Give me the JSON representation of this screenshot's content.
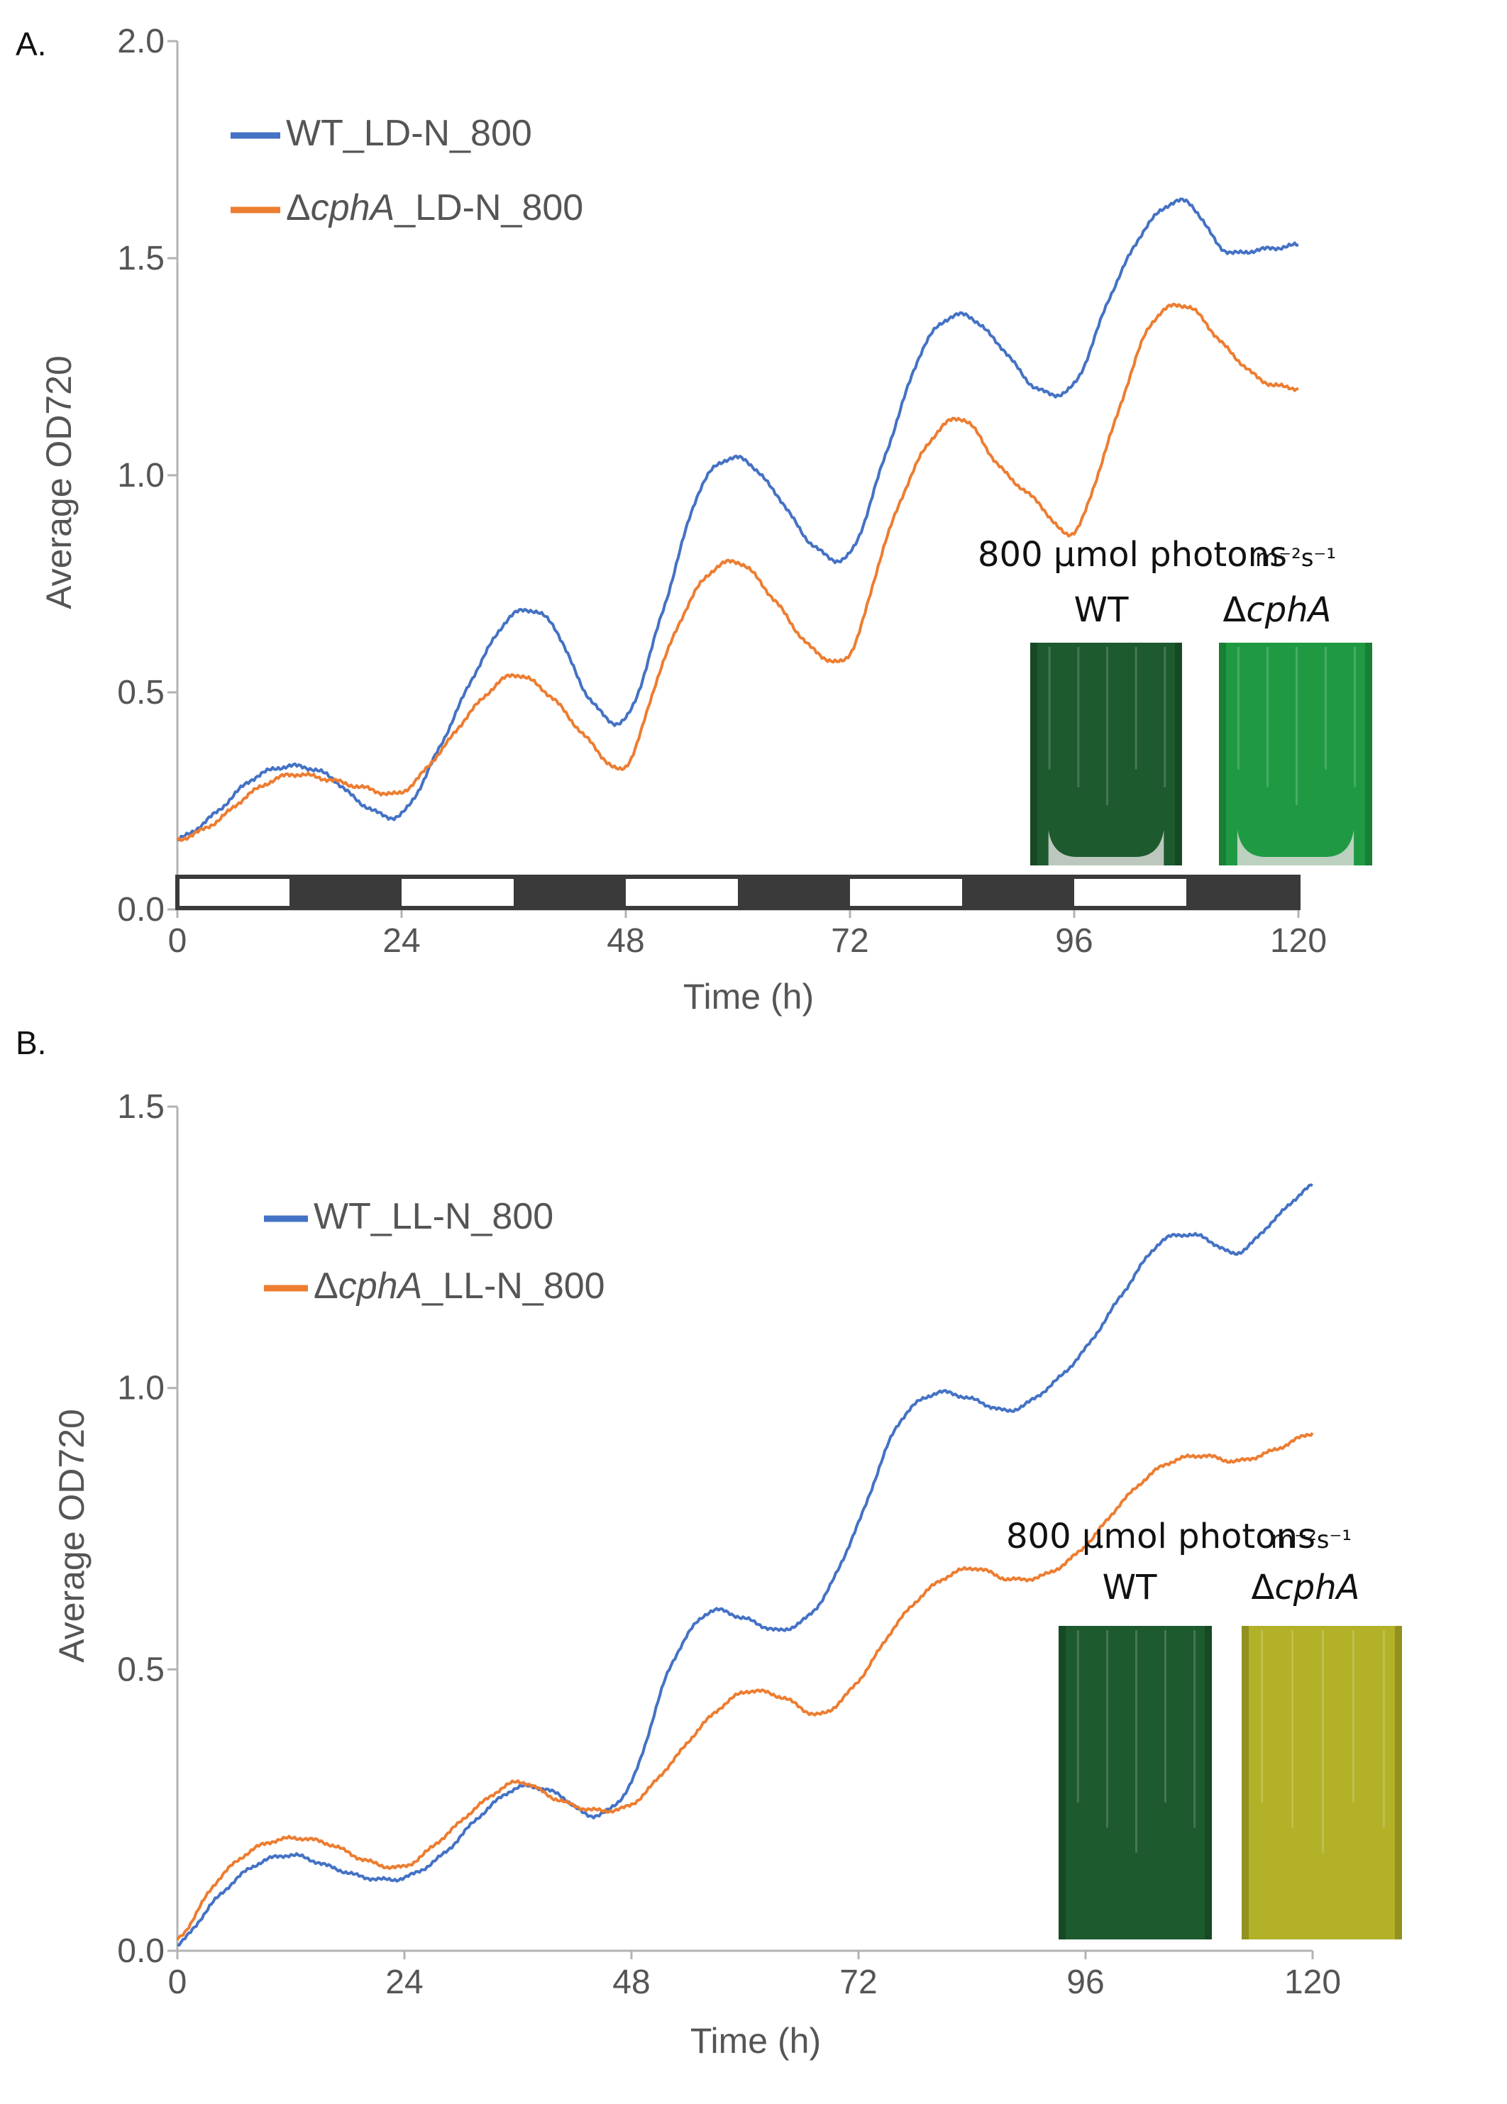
{
  "colors": {
    "wt": "#4472c4",
    "mutant": "#ed7d31",
    "axis": "#b3b3b3",
    "text": "#555555",
    "panel_letter": "#111111",
    "dark_bar": "#3a3a3a",
    "wt_culture": "#1d5a2e",
    "cphA_culture_A": "#1f9a43",
    "cphA_culture_B": "#b3b128"
  },
  "chart_data": [
    {
      "type": "line",
      "panel_label": "A.",
      "xlabel": "Time (h)",
      "ylabel": "Average OD720",
      "xlim": [
        0,
        120
      ],
      "ylim": [
        0,
        2.0
      ],
      "xticks": [
        0,
        24,
        48,
        72,
        96,
        120
      ],
      "yticks": [
        0.0,
        0.5,
        1.0,
        1.5,
        2.0
      ],
      "ytick_labels": [
        "0.0",
        "0.5",
        "1.0",
        "1.5",
        "2.0"
      ],
      "grid": false,
      "legend_position": "top-left",
      "series": [
        {
          "name_prefix": "WT",
          "name_italic": "",
          "name_suffix": "_LD-N_800",
          "color_key": "wt",
          "x": [
            0,
            4,
            8,
            12,
            16,
            20,
            24,
            28,
            32,
            36,
            40,
            44,
            48,
            52,
            56,
            60,
            64,
            68,
            72,
            76,
            80,
            84,
            88,
            92,
            96,
            100,
            104,
            108,
            112,
            116,
            120
          ],
          "y": [
            0.16,
            0.22,
            0.3,
            0.33,
            0.31,
            0.24,
            0.22,
            0.37,
            0.55,
            0.68,
            0.66,
            0.49,
            0.44,
            0.69,
            0.97,
            1.04,
            0.96,
            0.84,
            0.82,
            1.06,
            1.3,
            1.37,
            1.3,
            1.2,
            1.21,
            1.42,
            1.58,
            1.63,
            1.52,
            1.52,
            1.53
          ]
        },
        {
          "name_prefix": "Δ",
          "name_italic": "cphA",
          "name_suffix": "_LD-N_800",
          "color_key": "mutant",
          "x": [
            0,
            4,
            8,
            12,
            16,
            20,
            24,
            28,
            32,
            36,
            40,
            44,
            48,
            52,
            56,
            60,
            64,
            68,
            72,
            76,
            80,
            84,
            88,
            92,
            96,
            100,
            104,
            108,
            112,
            116,
            120
          ],
          "y": [
            0.16,
            0.2,
            0.27,
            0.31,
            0.3,
            0.28,
            0.27,
            0.36,
            0.47,
            0.54,
            0.49,
            0.39,
            0.33,
            0.57,
            0.75,
            0.8,
            0.71,
            0.6,
            0.59,
            0.86,
            1.06,
            1.13,
            1.02,
            0.94,
            0.87,
            1.1,
            1.34,
            1.39,
            1.3,
            1.22,
            1.2
          ]
        }
      ],
      "light_dark_bar": [
        "light",
        "dark",
        "light",
        "dark",
        "light",
        "dark",
        "light",
        "dark",
        "light",
        "dark"
      ],
      "inset": {
        "title_main": "800 μmol photons",
        "title_unit": "m⁻²s⁻¹",
        "labels": [
          {
            "prefix": "WT",
            "italic": ""
          },
          {
            "prefix": "Δ",
            "italic": "cphA"
          }
        ]
      }
    },
    {
      "type": "line",
      "panel_label": "B.",
      "xlabel": "Time (h)",
      "ylabel": "Average OD720",
      "xlim": [
        0,
        120
      ],
      "ylim": [
        0,
        1.5
      ],
      "xticks": [
        0,
        24,
        48,
        72,
        96,
        120
      ],
      "yticks": [
        0.0,
        0.5,
        1.0,
        1.5
      ],
      "ytick_labels": [
        "0.0",
        "0.5",
        "1.0",
        "1.5"
      ],
      "grid": false,
      "legend_position": "top-left",
      "series": [
        {
          "name_prefix": "WT",
          "name_italic": "",
          "name_suffix": "_LL-N_800",
          "color_key": "wt",
          "x": [
            0,
            4,
            8,
            12,
            16,
            20,
            24,
            28,
            32,
            36,
            40,
            44,
            48,
            52,
            56,
            60,
            64,
            68,
            72,
            76,
            80,
            84,
            88,
            92,
            96,
            100,
            104,
            108,
            112,
            116,
            120
          ],
          "y": [
            0.01,
            0.09,
            0.15,
            0.17,
            0.15,
            0.13,
            0.13,
            0.17,
            0.24,
            0.29,
            0.28,
            0.24,
            0.3,
            0.5,
            0.6,
            0.59,
            0.57,
            0.62,
            0.76,
            0.93,
            0.99,
            0.98,
            0.96,
            1.0,
            1.07,
            1.17,
            1.26,
            1.27,
            1.24,
            1.3,
            1.36
          ]
        },
        {
          "name_prefix": "Δ",
          "name_italic": "cphA",
          "name_suffix": "_LL-N_800",
          "color_key": "mutant",
          "x": [
            0,
            4,
            8,
            12,
            16,
            20,
            24,
            28,
            32,
            36,
            40,
            44,
            48,
            52,
            56,
            60,
            64,
            68,
            72,
            76,
            80,
            84,
            88,
            92,
            96,
            100,
            104,
            108,
            112,
            116,
            120
          ],
          "y": [
            0.02,
            0.12,
            0.18,
            0.2,
            0.19,
            0.16,
            0.15,
            0.2,
            0.26,
            0.3,
            0.27,
            0.25,
            0.26,
            0.33,
            0.41,
            0.46,
            0.45,
            0.42,
            0.48,
            0.58,
            0.65,
            0.68,
            0.66,
            0.67,
            0.72,
            0.8,
            0.86,
            0.88,
            0.87,
            0.89,
            0.92
          ]
        }
      ],
      "inset": {
        "title_main": "800 μmol photons",
        "title_unit": "m⁻²s⁻¹",
        "labels": [
          {
            "prefix": "WT",
            "italic": ""
          },
          {
            "prefix": "Δ",
            "italic": "cphA"
          }
        ]
      }
    }
  ]
}
